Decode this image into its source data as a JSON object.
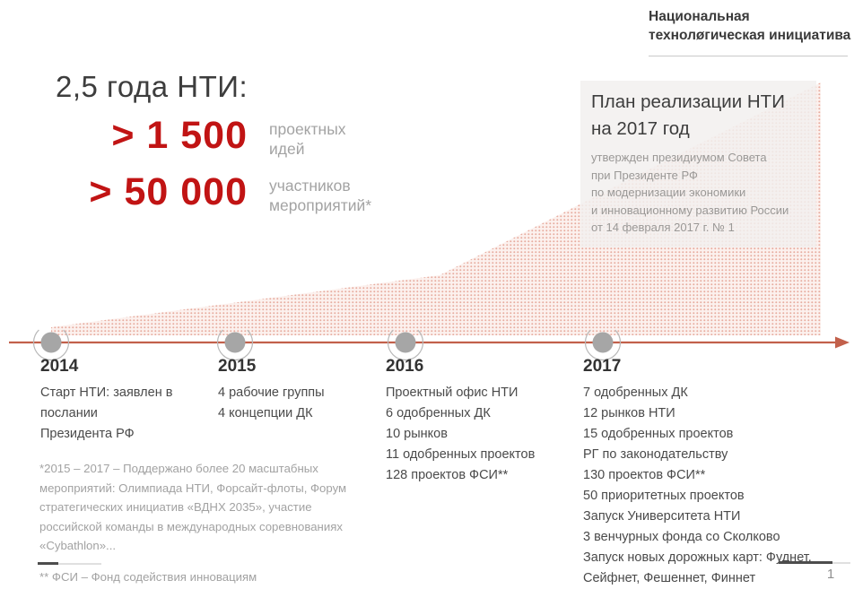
{
  "logo": {
    "line1": "Национальная",
    "line2": "технолøгическая инициатива"
  },
  "heading": "2,5 года НТИ:",
  "stats": [
    {
      "value": "> 1 500",
      "label": "проектных\nидей"
    },
    {
      "value": "> 50 000",
      "label": "участников\nмероприятий*"
    }
  ],
  "plan_box": {
    "title": "План реализации НТИ\nна 2017 год",
    "subtitle": "утвержден президиумом Совета\nпри Президенте РФ\nпо модернизации экономики\nи инновационному развитию России\nот 14 февраля 2017 г. № 1"
  },
  "timeline": {
    "years": [
      {
        "year": "2014",
        "items": [
          "Старт НТИ: заявлен в\nпослании\nПрезидента РФ"
        ]
      },
      {
        "year": "2015",
        "items": [
          "4 рабочие группы",
          "4 концепции ДК"
        ]
      },
      {
        "year": "2016",
        "items": [
          "Проектный офис НТИ",
          "6 одобренных ДК",
          "10 рынков",
          "11 одобренных проектов",
          "128 проектов ФСИ**"
        ]
      },
      {
        "year": "2017",
        "items": [
          "7 одобренных ДК",
          "12 рынков НТИ",
          "15 одобренных проектов",
          "РГ по законодательству",
          "130 проектов ФСИ**",
          "50 приоритетных проектов",
          "Запуск Университета НТИ",
          "3 венчурных фонда со Сколково",
          "Запуск новых дорожных карт: Фуднет,\nСейфнет, Фешеннет, Финнет"
        ]
      }
    ]
  },
  "footnotes": {
    "note1": "*2015 – 2017 – Поддержано более 20 масштабных мероприятий: Олимпиада НТИ, Форсайт-флоты, Форум стратегических инициатив «ВДНХ 2035», участие российской команды в международных соревнованиях «Cybathlon»...",
    "note2": "** ФСИ – Фонд содействия инновациям"
  },
  "page_number": "1",
  "colors": {
    "accent_red": "#c11414",
    "timeline_red": "#c2604b",
    "dot_gray": "#a6a6a6",
    "area_dot_pink": "#e7ac9f",
    "area_bg_pink": "#fcf1ee",
    "text_dark": "#3d3d3d",
    "text_muted": "#a2a2a2"
  }
}
